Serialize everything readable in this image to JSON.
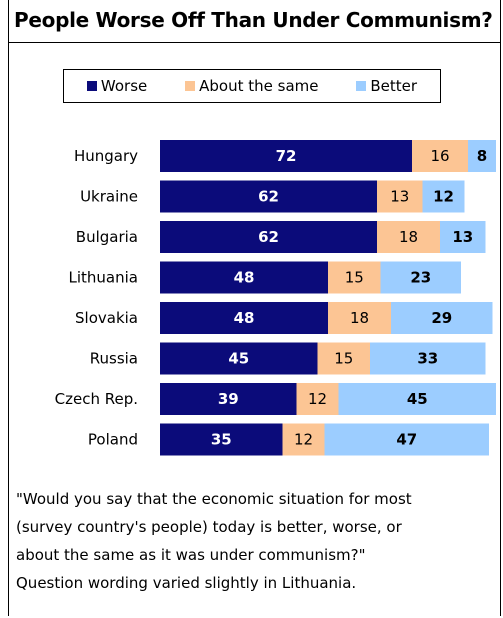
{
  "chart_data": {
    "type": "bar",
    "stacked": true,
    "orientation": "horizontal",
    "title": "People Worse Off Than Under Communism?",
    "categories": [
      "Hungary",
      "Ukraine",
      "Bulgaria",
      "Lithuania",
      "Slovakia",
      "Russia",
      "Czech Rep.",
      "Poland"
    ],
    "series": [
      {
        "name": "Worse",
        "color": "#0b0b7a",
        "values": [
          72,
          62,
          62,
          48,
          48,
          45,
          39,
          35
        ]
      },
      {
        "name": "About the same",
        "color": "#fcc594",
        "values": [
          16,
          13,
          18,
          15,
          18,
          15,
          12,
          12
        ]
      },
      {
        "name": "Better",
        "color": "#9ccdff",
        "values": [
          8,
          12,
          13,
          23,
          29,
          33,
          45,
          47
        ]
      }
    ],
    "legend_position": "top",
    "grid": false,
    "xlim": [
      0,
      100
    ]
  },
  "note": {
    "lines": [
      "\"Would you say that the economic situation for most",
      "(survey country's people) today is better, worse, or",
      "about the same as it was under communism?\"",
      "Question wording varied slightly in Lithuania."
    ]
  }
}
